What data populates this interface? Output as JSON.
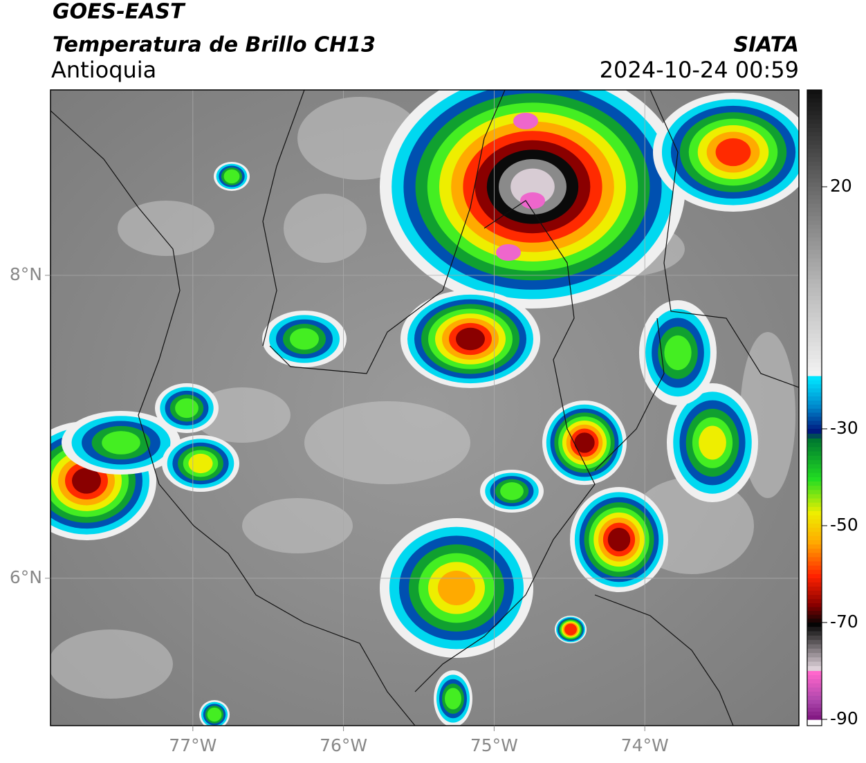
{
  "header": {
    "title": "GOES-EAST",
    "subtitle": "Temperatura de Brillo CH13",
    "region": "Antioquia",
    "agency": "SIATA",
    "datetime": "2024-10-24 00:59"
  },
  "map": {
    "lon_range": [
      -77.945,
      -72.977
    ],
    "lat_range": [
      5.027,
      9.224
    ],
    "lon_ticks": [
      {
        "value": -77,
        "label": "77°W"
      },
      {
        "value": -76,
        "label": "76°W"
      },
      {
        "value": -75,
        "label": "75°W"
      },
      {
        "value": -74,
        "label": "74°W"
      }
    ],
    "lat_ticks": [
      {
        "value": 8,
        "label": "8°N"
      },
      {
        "value": 6,
        "label": "6°N"
      }
    ],
    "grid": true
  },
  "colorbar": {
    "range": [
      40,
      -91.3
    ],
    "ticks": [
      20,
      -30,
      -50,
      -70,
      -90
    ],
    "stops": [
      {
        "value": 40,
        "color": "#111111"
      },
      {
        "value": 20,
        "color": "#6a6a6a"
      },
      {
        "value": 0,
        "color": "#b8b8b8"
      },
      {
        "value": -19,
        "color": "#f4f4f4"
      },
      {
        "value": -19.1,
        "color": "#00e5ff"
      },
      {
        "value": -25,
        "color": "#0088cc"
      },
      {
        "value": -30,
        "color": "#001a80"
      },
      {
        "value": -32,
        "color": "#007a30"
      },
      {
        "value": -40,
        "color": "#22dd22"
      },
      {
        "value": -47,
        "color": "#eeee00"
      },
      {
        "value": -53,
        "color": "#ffaa00"
      },
      {
        "value": -60,
        "color": "#ff2200"
      },
      {
        "value": -66,
        "color": "#880000"
      },
      {
        "value": -70,
        "color": "#050505"
      },
      {
        "value": -79,
        "color": "#ddd0d8"
      },
      {
        "value": -80,
        "color": "#ff66cc"
      },
      {
        "value": -86,
        "color": "#aa44aa"
      },
      {
        "value": -90,
        "color": "#7a107a"
      },
      {
        "value": -90.1,
        "color": "#ffffff"
      },
      {
        "value": -91.3,
        "color": "#ffffff"
      }
    ]
  }
}
